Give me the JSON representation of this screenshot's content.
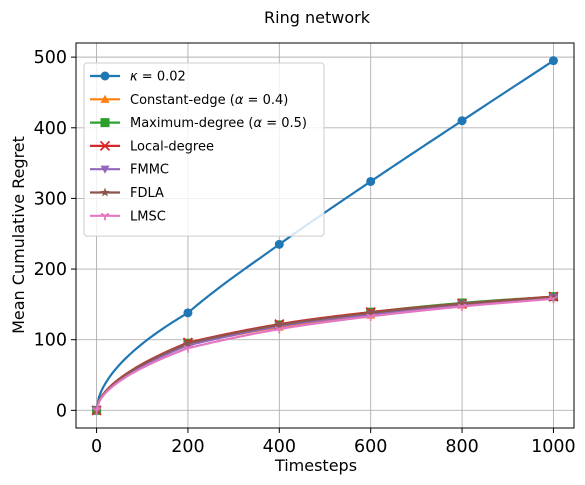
{
  "chart_data": {
    "type": "line",
    "title": "Ring network",
    "xlabel": "Timesteps",
    "ylabel": "Mean Cumulative Regret",
    "xlim": [
      -45,
      1045
    ],
    "ylim": [
      -25,
      520
    ],
    "xticks": [
      0,
      200,
      400,
      600,
      800,
      1000
    ],
    "yticks": [
      0,
      100,
      200,
      300,
      400,
      500
    ],
    "grid": true,
    "legend_position": "top-left",
    "x": [
      0,
      200,
      400,
      600,
      800,
      1000
    ],
    "series": [
      {
        "name": "κ = 0.02",
        "legend_prefix": "κ",
        "legend_rest": " = 0.02",
        "color": "#1f77b4",
        "marker": "circle",
        "values": [
          0,
          138,
          235,
          324,
          410,
          495
        ]
      },
      {
        "name": "Constant-edge (α = 0.4)",
        "legend_prefix": "Constant-edge (",
        "legend_sym": "α",
        "legend_rest": " = 0.4)",
        "color": "#ff7f0e",
        "marker": "triangle-up",
        "values": [
          0,
          93,
          118,
          135,
          149,
          160
        ]
      },
      {
        "name": "Maximum-degree (α = 0.5)",
        "legend_prefix": "Maximum-degree (",
        "legend_sym": "α",
        "legend_rest": " = 0.5)",
        "color": "#2ca02c",
        "marker": "square",
        "values": [
          0,
          95,
          121,
          139,
          152,
          161
        ]
      },
      {
        "name": "Local-degree",
        "color": "#d62728",
        "marker": "x",
        "values": [
          0,
          96,
          122,
          139,
          151,
          161
        ]
      },
      {
        "name": "FMMC",
        "color": "#9467bd",
        "marker": "triangle-down",
        "values": [
          0,
          92,
          119,
          136,
          150,
          160
        ]
      },
      {
        "name": "FDLA",
        "color": "#8c564b",
        "marker": "star",
        "values": [
          0,
          95,
          121,
          138,
          151,
          160
        ]
      },
      {
        "name": "LMSC",
        "color": "#e377c2",
        "marker": "tri-down",
        "values": [
          0,
          88,
          115,
          133,
          147,
          158
        ]
      }
    ]
  }
}
